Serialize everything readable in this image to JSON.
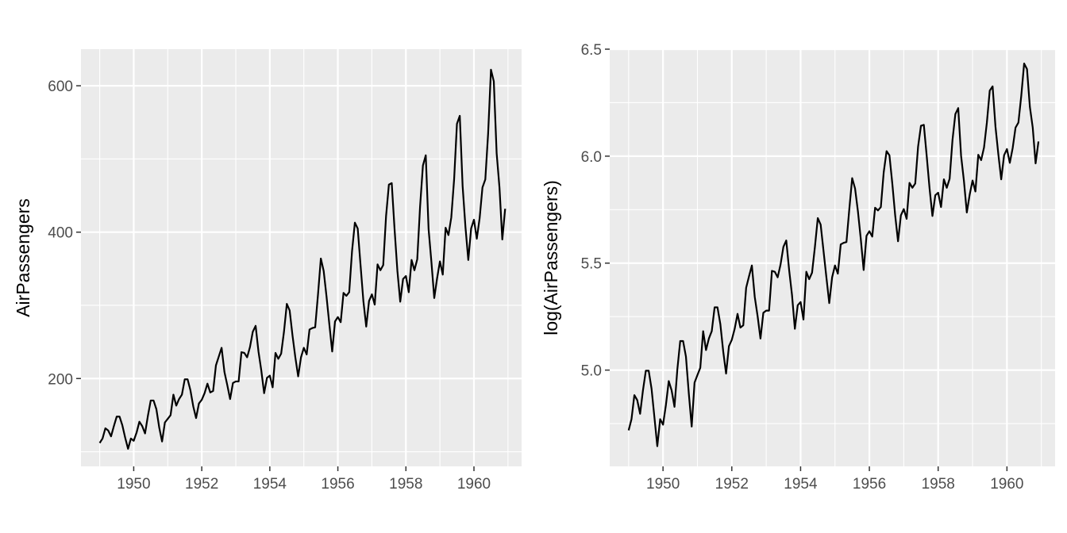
{
  "chart_data": [
    {
      "type": "line",
      "ylabel": "AirPassengers",
      "xlabel": "",
      "xlim": [
        1948.45,
        1961.4
      ],
      "ylim": [
        80,
        650
      ],
      "x_ticks": [
        1950,
        1952,
        1954,
        1956,
        1958,
        1960
      ],
      "x_tick_labels": [
        "1950",
        "1952",
        "1954",
        "1956",
        "1958",
        "1960"
      ],
      "y_ticks": [
        200,
        400,
        600
      ],
      "y_tick_labels": [
        "200",
        "400",
        "600"
      ],
      "y_minor_ticks": [
        100,
        300,
        500
      ],
      "grid": true,
      "x_start": 1949,
      "x_step": 0.0833333,
      "values": [
        112,
        118,
        132,
        129,
        121,
        135,
        148,
        148,
        136,
        119,
        104,
        118,
        115,
        126,
        141,
        135,
        125,
        149,
        170,
        170,
        158,
        133,
        114,
        140,
        145,
        150,
        178,
        163,
        172,
        178,
        199,
        199,
        184,
        162,
        146,
        166,
        171,
        180,
        193,
        181,
        183,
        218,
        230,
        242,
        209,
        191,
        172,
        194,
        196,
        196,
        236,
        235,
        229,
        243,
        264,
        272,
        237,
        211,
        180,
        201,
        204,
        188,
        235,
        227,
        234,
        264,
        302,
        293,
        259,
        229,
        203,
        229,
        242,
        233,
        267,
        269,
        270,
        315,
        364,
        347,
        312,
        274,
        237,
        278,
        284,
        277,
        317,
        313,
        318,
        374,
        413,
        405,
        355,
        306,
        271,
        306,
        315,
        301,
        356,
        348,
        355,
        422,
        465,
        467,
        404,
        347,
        305,
        336,
        340,
        318,
        362,
        348,
        363,
        435,
        491,
        505,
        404,
        359,
        310,
        337,
        360,
        342,
        406,
        396,
        420,
        472,
        548,
        559,
        463,
        407,
        362,
        405,
        417,
        391,
        419,
        461,
        472,
        535,
        622,
        606,
        508,
        461,
        390,
        432
      ]
    },
    {
      "type": "line",
      "ylabel": "log(AirPassengers)",
      "xlabel": "",
      "xlim": [
        1948.45,
        1961.4
      ],
      "ylim": [
        4.55,
        6.5
      ],
      "x_ticks": [
        1950,
        1952,
        1954,
        1956,
        1958,
        1960
      ],
      "x_tick_labels": [
        "1950",
        "1952",
        "1954",
        "1956",
        "1958",
        "1960"
      ],
      "y_ticks": [
        5.0,
        5.5,
        6.0,
        6.5
      ],
      "y_tick_labels": [
        "5.0",
        "5.5",
        "6.0",
        "6.5"
      ],
      "y_minor_ticks": [
        4.75,
        5.25,
        5.75,
        6.25
      ],
      "grid": true,
      "transform": "log",
      "x_start": 1949,
      "x_step": 0.0833333,
      "values_source": "log of AirPassengers series"
    }
  ]
}
